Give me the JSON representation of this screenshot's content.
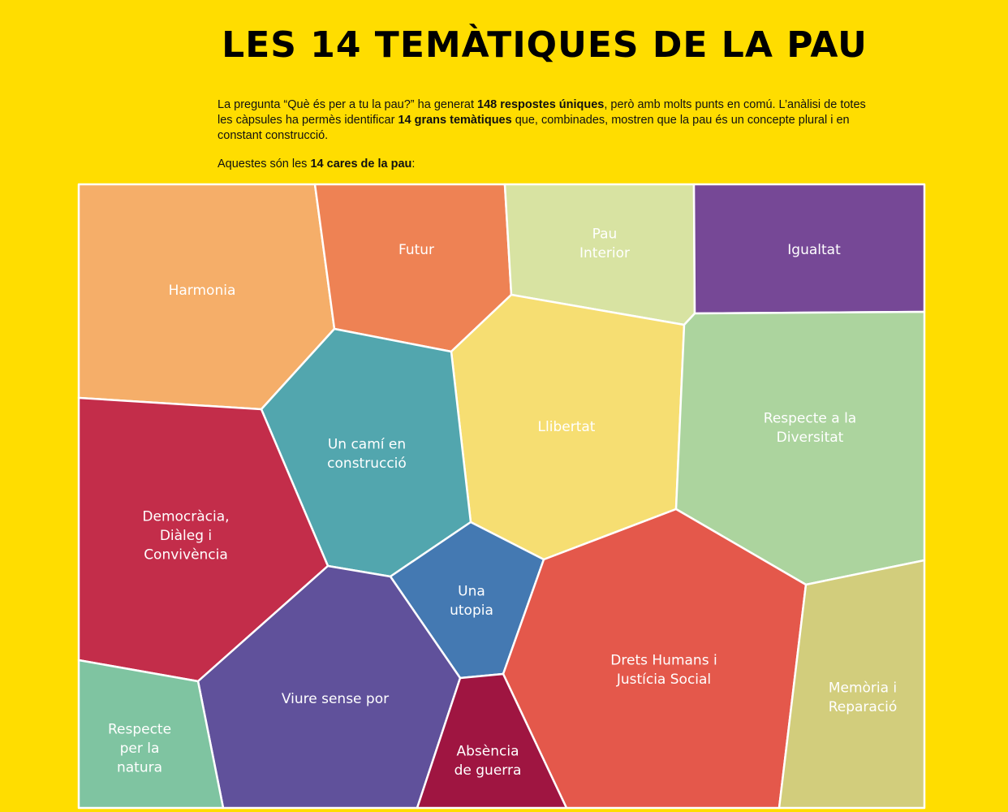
{
  "title": "LES 14 TEMÀTIQUES DE LA PAU",
  "intro": {
    "p1_a": "La pregunta “Què és per a tu la pau?” ha generat ",
    "p1_b": "148 respostes úniques",
    "p1_c": ", però amb molts punts en comú. L’anàlisi de totes les càpsules ha permès identificar ",
    "p1_d": "14 grans temàtiques",
    "p1_e": " que, combinades, mostren que la pau és un concepte plural i en constant construcció.",
    "p2_a": "Aquestes són les ",
    "p2_b": "14 cares de la pau",
    "p2_c": ":"
  },
  "themes": [
    {
      "id": "harmonia",
      "lines": [
        "Harmonia"
      ],
      "color": "#f5ae69"
    },
    {
      "id": "futur",
      "lines": [
        "Futur"
      ],
      "color": "#ee8254"
    },
    {
      "id": "pau-interior",
      "lines": [
        "Pau",
        "Interior"
      ],
      "color": "#d8e3a2"
    },
    {
      "id": "igualtat",
      "lines": [
        "Igualtat"
      ],
      "color": "#764896"
    },
    {
      "id": "llibertat",
      "lines": [
        "Llibertat"
      ],
      "color": "#f6de72"
    },
    {
      "id": "respecte-diversitat",
      "lines": [
        "Respecte a la",
        "Diversitat"
      ],
      "color": "#acd49e"
    },
    {
      "id": "cami-construccio",
      "lines": [
        "Un camí en",
        "construcció"
      ],
      "color": "#52a6ae"
    },
    {
      "id": "democracia",
      "lines": [
        "Democràcia,",
        "Diàleg i",
        "Convivència"
      ],
      "color": "#c32d4a"
    },
    {
      "id": "utopia",
      "lines": [
        "Una",
        "utopia"
      ],
      "color": "#4479b2"
    },
    {
      "id": "drets-humans",
      "lines": [
        "Drets Humans i",
        "Justícia Social"
      ],
      "color": "#e4584b"
    },
    {
      "id": "memoria",
      "lines": [
        "Memòria i",
        "Reparació"
      ],
      "color": "#d2cd7c"
    },
    {
      "id": "viure-sense-por",
      "lines": [
        "Viure sense por"
      ],
      "color": "#60519b"
    },
    {
      "id": "absencia-guerra",
      "lines": [
        "Absència",
        "de guerra"
      ],
      "color": "#9f1541"
    },
    {
      "id": "respecte-natura",
      "lines": [
        "Respecte",
        "per la",
        "natura"
      ],
      "color": "#7fc4a1"
    }
  ]
}
